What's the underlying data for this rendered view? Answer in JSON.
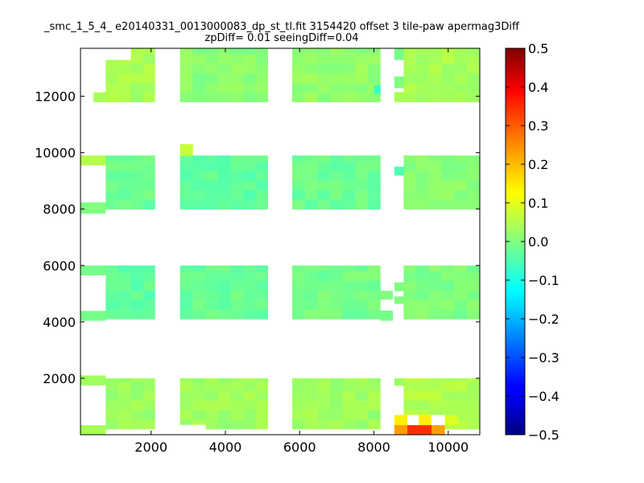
{
  "chart_data": {
    "type": "heatmap",
    "title": "_smc_1_5_4_ e20140331_0013000083_dp_st_tl.fit 3154420 offset 3 tile-paw apermag3Diff",
    "subtitle": "zpDiff= 0.01 seeingDiff=0.04",
    "xlabel": "",
    "ylabel": "",
    "xlim": [
      100,
      10850
    ],
    "ylim": [
      0,
      13700
    ],
    "x_ticks": [
      2000,
      4000,
      6000,
      8000,
      10000
    ],
    "y_ticks": [
      2000,
      4000,
      6000,
      8000,
      10000,
      12000
    ],
    "colorbar": {
      "colormap": "jet",
      "range": [
        -0.5,
        0.5
      ],
      "ticks": [
        "0.5",
        "0.4",
        "0.3",
        "0.2",
        "0.1",
        "0.0",
        "−0.1",
        "−0.2",
        "−0.3",
        "−0.4",
        "−0.5"
      ]
    },
    "cell_size": [
      340,
      340
    ],
    "tile_columns": [
      [
        770,
        2100
      ],
      [
        2780,
        5140
      ],
      [
        5800,
        8170
      ],
      [
        8800,
        10850
      ]
    ],
    "tile_rows": [
      [
        200,
        2000
      ],
      [
        4100,
        6000
      ],
      [
        8000,
        9900
      ],
      [
        11800,
        13700
      ]
    ],
    "tiles": [
      {
        "col": 0,
        "row": 0,
        "value": 0.03
      },
      {
        "col": 0,
        "row": 1,
        "value": -0.03
      },
      {
        "col": 0,
        "row": 2,
        "value": -0.02
      },
      {
        "col": 0,
        "row": 3,
        "value": 0.04
      },
      {
        "col": 1,
        "row": 0,
        "value": 0.03
      },
      {
        "col": 1,
        "row": 1,
        "value": -0.02
      },
      {
        "col": 1,
        "row": 2,
        "value": -0.03
      },
      {
        "col": 1,
        "row": 3,
        "value": 0.01
      },
      {
        "col": 2,
        "row": 0,
        "value": 0.03
      },
      {
        "col": 2,
        "row": 1,
        "value": -0.01
      },
      {
        "col": 2,
        "row": 2,
        "value": -0.02
      },
      {
        "col": 2,
        "row": 3,
        "value": 0.02
      },
      {
        "col": 3,
        "row": 0,
        "value": 0.05
      },
      {
        "col": 3,
        "row": 1,
        "value": 0.0
      },
      {
        "col": 3,
        "row": 2,
        "value": 0.01
      },
      {
        "col": 3,
        "row": 3,
        "value": 0.04
      }
    ],
    "strips": [
      {
        "x": [
          100,
          770
        ],
        "y": [
          4050,
          4400
        ],
        "value": -0.01
      },
      {
        "x": [
          100,
          770
        ],
        "y": [
          5650,
          6000
        ],
        "value": -0.01
      },
      {
        "x": [
          100,
          770
        ],
        "y": [
          7850,
          8250
        ],
        "value": 0.0
      },
      {
        "x": [
          100,
          770
        ],
        "y": [
          9550,
          9900
        ],
        "value": 0.05
      },
      {
        "x": [
          100,
          770
        ],
        "y": [
          1750,
          2100
        ],
        "value": 0.03
      },
      {
        "x": [
          100,
          770
        ],
        "y": [
          0,
          350
        ],
        "value": 0.04
      },
      {
        "x": [
          450,
          770
        ],
        "y": [
          11800,
          12150
        ],
        "value": 0.04
      },
      {
        "x": [
          8170,
          8500
        ],
        "y": [
          4800,
          5100
        ],
        "value": 0.0
      },
      {
        "x": [
          8170,
          8500
        ],
        "y": [
          4050,
          4400
        ],
        "value": -0.01
      },
      {
        "x": [
          8550,
          8800
        ],
        "y": [
          1750,
          2000
        ],
        "value": 0.03
      },
      {
        "x": [
          8550,
          8800
        ],
        "y": [
          5100,
          5400
        ],
        "value": 0.0
      },
      {
        "x": [
          8550,
          8800
        ],
        "y": [
          4650,
          4900
        ],
        "value": 0.0
      },
      {
        "x": [
          8550,
          8800
        ],
        "y": [
          9200,
          9500
        ],
        "value": -0.05
      },
      {
        "x": [
          8550,
          8800
        ],
        "y": [
          13300,
          13700
        ],
        "value": -0.01
      },
      {
        "x": [
          8550,
          8800
        ],
        "y": [
          12300,
          12700
        ],
        "value": 0.0
      },
      {
        "x": [
          8550,
          8800
        ],
        "y": [
          11800,
          12150
        ],
        "value": 0.04
      },
      {
        "x": [
          2780,
          3120
        ],
        "y": [
          9900,
          10300
        ],
        "value": 0.07
      },
      {
        "x": [
          8000,
          8170
        ],
        "y": [
          12100,
          12400
        ],
        "value": -0.07
      }
    ],
    "hot_cells": [
      {
        "x": [
          8550,
          8900
        ],
        "y": [
          0,
          350
        ],
        "value": 0.22
      },
      {
        "x": [
          8900,
          9550
        ],
        "y": [
          0,
          350
        ],
        "value": 0.33
      },
      {
        "x": [
          9550,
          9900
        ],
        "y": [
          0,
          350
        ],
        "value": 0.22
      },
      {
        "x": [
          8550,
          8900
        ],
        "y": [
          350,
          700
        ],
        "value": 0.14
      },
      {
        "x": [
          9200,
          9550
        ],
        "y": [
          350,
          700
        ],
        "value": 0.14
      },
      {
        "x": [
          9900,
          10250
        ],
        "y": [
          350,
          700
        ],
        "value": 0.09
      }
    ],
    "holes": [
      {
        "x": [
          100,
          770
        ],
        "y": [
          12150,
          13700
        ]
      },
      {
        "x": [
          770,
          1450
        ],
        "y": [
          13300,
          13700
        ]
      },
      {
        "x": [
          100,
          770
        ],
        "y": [
          8250,
          9550
        ]
      },
      {
        "x": [
          100,
          770
        ],
        "y": [
          4400,
          5650
        ]
      },
      {
        "x": [
          100,
          770
        ],
        "y": [
          350,
          1750
        ]
      },
      {
        "x": [
          2780,
          3460
        ],
        "y": [
          200,
          350
        ]
      },
      {
        "x": [
          8900,
          9200
        ],
        "y": [
          350,
          700
        ]
      },
      {
        "x": [
          9550,
          9900
        ],
        "y": [
          350,
          700
        ]
      }
    ],
    "grid": false,
    "legend": "none"
  }
}
